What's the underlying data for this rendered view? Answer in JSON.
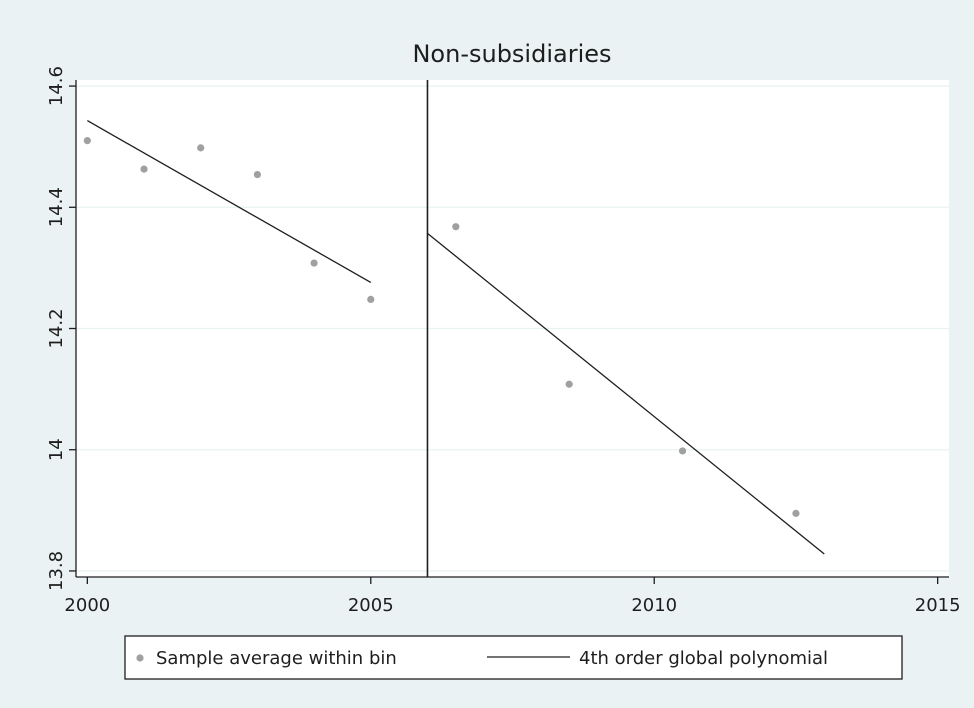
{
  "chart_data": {
    "type": "scatter",
    "title": "Non-subsidiaries",
    "xlabel": "",
    "ylabel": "",
    "xlim": [
      1999.8,
      2015.2
    ],
    "ylim": [
      13.79,
      14.61
    ],
    "xticks": [
      2000,
      2005,
      2010,
      2015
    ],
    "yticks": [
      13.8,
      14.0,
      14.2,
      14.4,
      14.6
    ],
    "xtick_labels": [
      "2000",
      "2005",
      "2010",
      "2015"
    ],
    "ytick_labels": [
      "13.8",
      "14",
      "14.2",
      "14.4",
      "14.6"
    ],
    "grid": "horizontal",
    "cutoff_x": 2006,
    "series": [
      {
        "name": "Sample average within bin",
        "kind": "scatter",
        "color": "#a0a0a0",
        "points": [
          {
            "x": 2000,
            "y": 14.51
          },
          {
            "x": 2001,
            "y": 14.463
          },
          {
            "x": 2002,
            "y": 14.498
          },
          {
            "x": 2003,
            "y": 14.454
          },
          {
            "x": 2004,
            "y": 14.308
          },
          {
            "x": 2005,
            "y": 14.248
          },
          {
            "x": 2006.5,
            "y": 14.368
          },
          {
            "x": 2008.5,
            "y": 14.108
          },
          {
            "x": 2010.5,
            "y": 13.998
          },
          {
            "x": 2012.5,
            "y": 13.895
          }
        ]
      },
      {
        "name": "4th order global polynomial",
        "kind": "line",
        "color": "#1e1e1e",
        "segments": [
          [
            {
              "x": 2000,
              "y": 14.543
            },
            {
              "x": 2005,
              "y": 14.276
            }
          ],
          [
            {
              "x": 2006,
              "y": 14.357
            },
            {
              "x": 2013,
              "y": 13.828
            }
          ]
        ]
      }
    ],
    "legend": {
      "placement": "bottom",
      "entries": [
        "Sample average within bin",
        "4th order global polynomial"
      ]
    }
  }
}
